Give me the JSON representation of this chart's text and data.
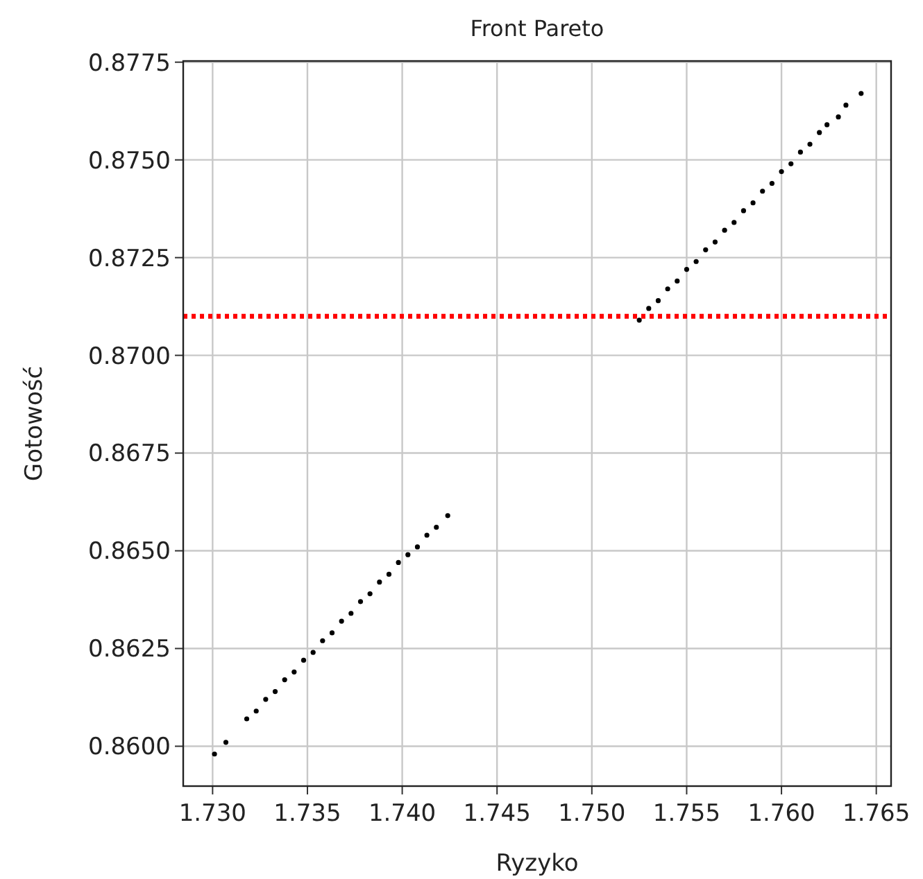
{
  "chart_data": {
    "type": "scatter",
    "title": "Front Pareto",
    "xlabel": "Ryzyko",
    "ylabel": "Gotowość",
    "xlim": [
      1.72845,
      1.76578
    ],
    "ylim": [
      0.85898,
      0.87753
    ],
    "xticks": [
      {
        "value": 1.73,
        "label": "1.730"
      },
      1.735,
      {
        "value": 1.74,
        "label": "1.740"
      },
      1.745,
      {
        "value": 1.75,
        "label": "1.750"
      },
      1.755,
      {
        "value": 1.76,
        "label": "1.760"
      },
      1.765
    ],
    "yticks": [
      {
        "value": 0.86,
        "label": "0.8600"
      },
      0.8625,
      {
        "value": 0.865,
        "label": "0.8650"
      },
      0.8675,
      {
        "value": 0.87,
        "label": "0.8700"
      },
      0.8725,
      {
        "value": 0.875,
        "label": "0.8750"
      },
      0.8775
    ],
    "grid": true,
    "marker": "circle",
    "ref_lines": [
      {
        "axis": "y",
        "value": 0.871,
        "color": "#ff0000",
        "line_style": "dotted"
      }
    ],
    "series": [
      {
        "color": "#000000",
        "x": [
          1.7301,
          1.7307,
          1.7318,
          1.7323,
          1.7328,
          1.7333,
          1.7338,
          1.7343,
          1.7348,
          1.7353,
          1.7358,
          1.7363,
          1.7368,
          1.7373,
          1.7378,
          1.7383,
          1.7388,
          1.7393,
          1.7398,
          1.7403,
          1.7408,
          1.7413,
          1.7418,
          1.7424,
          1.7525,
          1.753,
          1.7535,
          1.754,
          1.7545,
          1.755,
          1.7555,
          1.756,
          1.7565,
          1.757,
          1.7575,
          1.758,
          1.7585,
          1.759,
          1.7595,
          1.76,
          1.7605,
          1.761,
          1.7615,
          1.762,
          1.7624,
          1.763,
          1.7634,
          1.7642
        ],
        "values": [
          0.8598,
          0.8601,
          0.8607,
          0.8609,
          0.8612,
          0.8614,
          0.8617,
          0.8619,
          0.8622,
          0.8624,
          0.8627,
          0.8629,
          0.8632,
          0.8634,
          0.8637,
          0.8639,
          0.8642,
          0.8644,
          0.8647,
          0.8649,
          0.8651,
          0.8654,
          0.8656,
          0.8659,
          0.8709,
          0.8712,
          0.8714,
          0.8717,
          0.8719,
          0.8722,
          0.8724,
          0.8727,
          0.8729,
          0.8732,
          0.8734,
          0.8737,
          0.8739,
          0.8742,
          0.8744,
          0.8747,
          0.8749,
          0.8752,
          0.8754,
          0.8757,
          0.8759,
          0.8761,
          0.8764,
          0.8767
        ]
      }
    ]
  }
}
